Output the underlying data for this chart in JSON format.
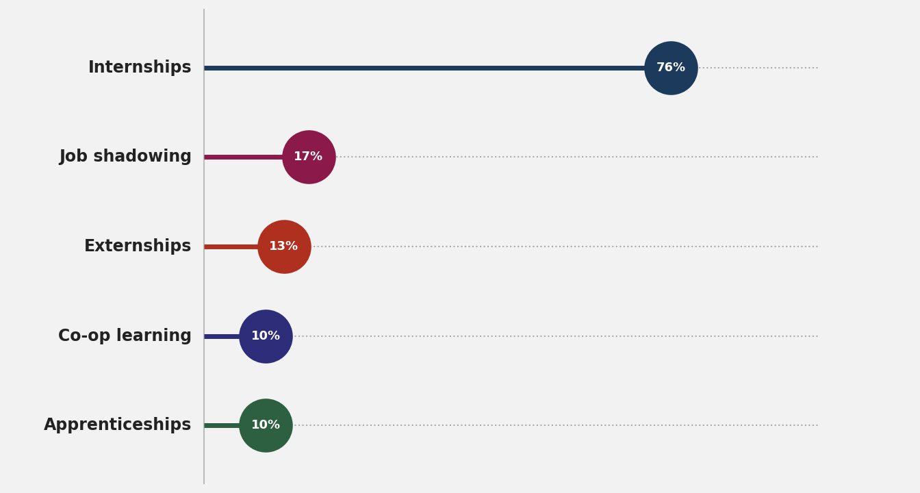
{
  "categories": [
    "Internships",
    "Job shadowing",
    "Externships",
    "Co-op learning",
    "Apprenticeships"
  ],
  "values": [
    76,
    17,
    13,
    10,
    10
  ],
  "colors": [
    "#1b3a5c",
    "#8b1a4a",
    "#b03020",
    "#2d2d7a",
    "#2d6040"
  ],
  "background_color": "#f2f2f2",
  "text_color": "#222222",
  "label_fontsize": 17,
  "value_fontsize": 13,
  "dotted_line_color": "#aaaaaa",
  "xlim_left": 0,
  "xlim_right": 100,
  "marker_size": 3200,
  "line_width": 5
}
